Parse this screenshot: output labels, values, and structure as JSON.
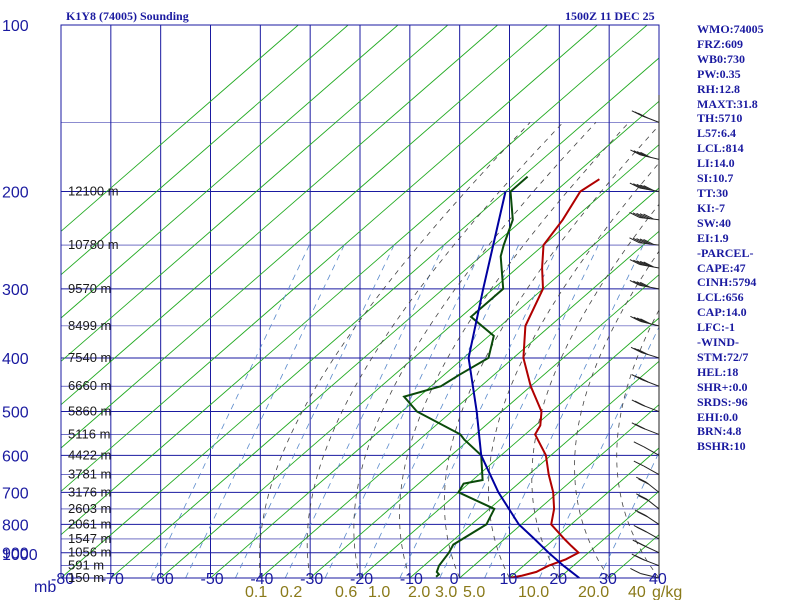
{
  "header": {
    "station": "K1Y8 (74005) Sounding",
    "time": "1500Z 11 DEC 25"
  },
  "chart_data": {
    "type": "skew-t",
    "title": "K1Y8 (74005) Sounding",
    "pressure_unit": "mb",
    "pressure_ticks": [
      100,
      200,
      300,
      400,
      500,
      600,
      700,
      800,
      900,
      1000
    ],
    "pressure_labels": [
      "100",
      "200",
      "300",
      "400",
      "500",
      "600",
      "700",
      "800",
      "900",
      "1000"
    ],
    "pressure_range": [
      100,
      1000
    ],
    "temperature_range": [
      -80,
      40
    ],
    "temperature_ticks": [
      -80,
      -70,
      -60,
      -50,
      -40,
      -30,
      -20,
      -10,
      0,
      10,
      20,
      30,
      40
    ],
    "temperature_labels": [
      "-80",
      "-70",
      "-60",
      "-50",
      "-40",
      "-30",
      "-20",
      "-10",
      "0",
      "10",
      "20",
      "30",
      "40"
    ],
    "mixing_ratio_unit": "g/kg",
    "mixing_ratio_labels": [
      "0.1",
      "0.2",
      "0.6",
      "1.0",
      "2.0",
      "3.0",
      "5.0",
      "10.0",
      "20.0",
      "40"
    ],
    "height_labels": [
      {
        "p": 200,
        "label": "12100 m"
      },
      {
        "p": 250,
        "label": "10780 m"
      },
      {
        "p": 300,
        "label": "9570 m"
      },
      {
        "p": 350,
        "label": "8499 m"
      },
      {
        "p": 400,
        "label": "7540 m"
      },
      {
        "p": 450,
        "label": "6660 m"
      },
      {
        "p": 500,
        "label": "5860 m"
      },
      {
        "p": 550,
        "label": "5116 m"
      },
      {
        "p": 600,
        "label": "4422 m"
      },
      {
        "p": 650,
        "label": "3781 m"
      },
      {
        "p": 700,
        "label": "3176 m"
      },
      {
        "p": 750,
        "label": "2603 m"
      },
      {
        "p": 800,
        "label": "2061 m"
      },
      {
        "p": 850,
        "label": "1547 m"
      },
      {
        "p": 900,
        "label": "1056 m"
      },
      {
        "p": 950,
        "label": "591 m"
      },
      {
        "p": 1000,
        "label": "150 m"
      }
    ],
    "series": [
      {
        "name": "temperature",
        "color": "#b00000",
        "points": [
          [
            190,
            -64
          ],
          [
            200,
            -65
          ],
          [
            225,
            -62
          ],
          [
            250,
            -60
          ],
          [
            275,
            -55
          ],
          [
            300,
            -50
          ],
          [
            350,
            -45
          ],
          [
            400,
            -38
          ],
          [
            450,
            -30
          ],
          [
            500,
            -22
          ],
          [
            530,
            -19
          ],
          [
            550,
            -18
          ],
          [
            600,
            -11
          ],
          [
            650,
            -6
          ],
          [
            700,
            -1
          ],
          [
            750,
            3
          ],
          [
            800,
            6
          ],
          [
            850,
            12
          ],
          [
            875,
            15
          ],
          [
            900,
            18
          ],
          [
            925,
            17
          ],
          [
            950,
            15
          ],
          [
            975,
            14
          ],
          [
            990,
            12
          ],
          [
            1000,
            10
          ]
        ]
      },
      {
        "name": "dewpoint",
        "color": "#0a4a0a",
        "points": [
          [
            188,
            -79
          ],
          [
            200,
            -79
          ],
          [
            225,
            -72
          ],
          [
            250,
            -68
          ],
          [
            262,
            -66
          ],
          [
            300,
            -58
          ],
          [
            337,
            -58
          ],
          [
            365,
            -49
          ],
          [
            400,
            -45
          ],
          [
            430,
            -47
          ],
          [
            450,
            -48
          ],
          [
            470,
            -53
          ],
          [
            500,
            -47
          ],
          [
            550,
            -33
          ],
          [
            562,
            -31
          ],
          [
            600,
            -24
          ],
          [
            665,
            -18
          ],
          [
            675,
            -21
          ],
          [
            700,
            -20
          ],
          [
            750,
            -9
          ],
          [
            800,
            -7
          ],
          [
            870,
            -9
          ],
          [
            900,
            -8
          ],
          [
            950,
            -7
          ],
          [
            975,
            -6
          ],
          [
            985,
            -5
          ],
          [
            995,
            -5
          ]
        ]
      },
      {
        "name": "parcel",
        "color": "#0000a0",
        "points": [
          [
            200,
            -80
          ],
          [
            300,
            -62
          ],
          [
            400,
            -49
          ],
          [
            500,
            -35
          ],
          [
            600,
            -24
          ],
          [
            700,
            -12
          ],
          [
            800,
            -0.5
          ],
          [
            850,
            6
          ],
          [
            900,
            12
          ],
          [
            950,
            18
          ],
          [
            1000,
            24
          ]
        ]
      }
    ],
    "wind_barbs": [
      {
        "p": 150,
        "dir": 300,
        "spd": 30
      },
      {
        "p": 175,
        "dir": 290,
        "spd": 40
      },
      {
        "p": 200,
        "dir": 285,
        "spd": 55
      },
      {
        "p": 225,
        "dir": 280,
        "spd": 60
      },
      {
        "p": 250,
        "dir": 280,
        "spd": 55
      },
      {
        "p": 275,
        "dir": 285,
        "spd": 50
      },
      {
        "p": 300,
        "dir": 285,
        "spd": 40
      },
      {
        "p": 350,
        "dir": 290,
        "spd": 35
      },
      {
        "p": 400,
        "dir": 295,
        "spd": 30
      },
      {
        "p": 450,
        "dir": 300,
        "spd": 25
      },
      {
        "p": 500,
        "dir": 300,
        "spd": 20
      },
      {
        "p": 550,
        "dir": 300,
        "spd": 15
      },
      {
        "p": 600,
        "dir": 310,
        "spd": 10
      },
      {
        "p": 650,
        "dir": 310,
        "spd": 10
      },
      {
        "p": 700,
        "dir": 320,
        "spd": 15
      },
      {
        "p": 750,
        "dir": 320,
        "spd": 15
      },
      {
        "p": 800,
        "dir": 315,
        "spd": 20
      },
      {
        "p": 850,
        "dir": 310,
        "spd": 20
      },
      {
        "p": 900,
        "dir": 305,
        "spd": 20
      },
      {
        "p": 950,
        "dir": 300,
        "spd": 20
      },
      {
        "p": 1000,
        "dir": 290,
        "spd": 10
      }
    ]
  },
  "indices": [
    "WMO:74005",
    "FRZ:609",
    "WB0:730",
    "PW:0.35",
    "RH:12.8",
    "MAXT:31.8",
    "TH:5710",
    "L57:6.4",
    "LCL:814",
    "LI:14.0",
    "SI:10.7",
    "TT:30",
    "KI:-7",
    "SW:40",
    "EI:1.9",
    "-PARCEL-",
    "CAPE:47",
    "CINH:5794",
    "LCL:656",
    "CAP:14.0",
    "LFC:-1",
    "-WIND-",
    "STM:72/7",
    "HEL:18",
    "SHR+:0.0",
    "SRDS:-96",
    "EHI:0.0",
    "BRN:4.8",
    "BSHR:10"
  ],
  "colors": {
    "grid": "#1a1aa0",
    "dry_adiabat": "#22aa22",
    "moist_adiabat": "#444444",
    "mixing": "#5a8acb",
    "temperature": "#b00000",
    "dewpoint": "#0a4a0a",
    "parcel": "#0000a0",
    "barb": "#222222"
  }
}
